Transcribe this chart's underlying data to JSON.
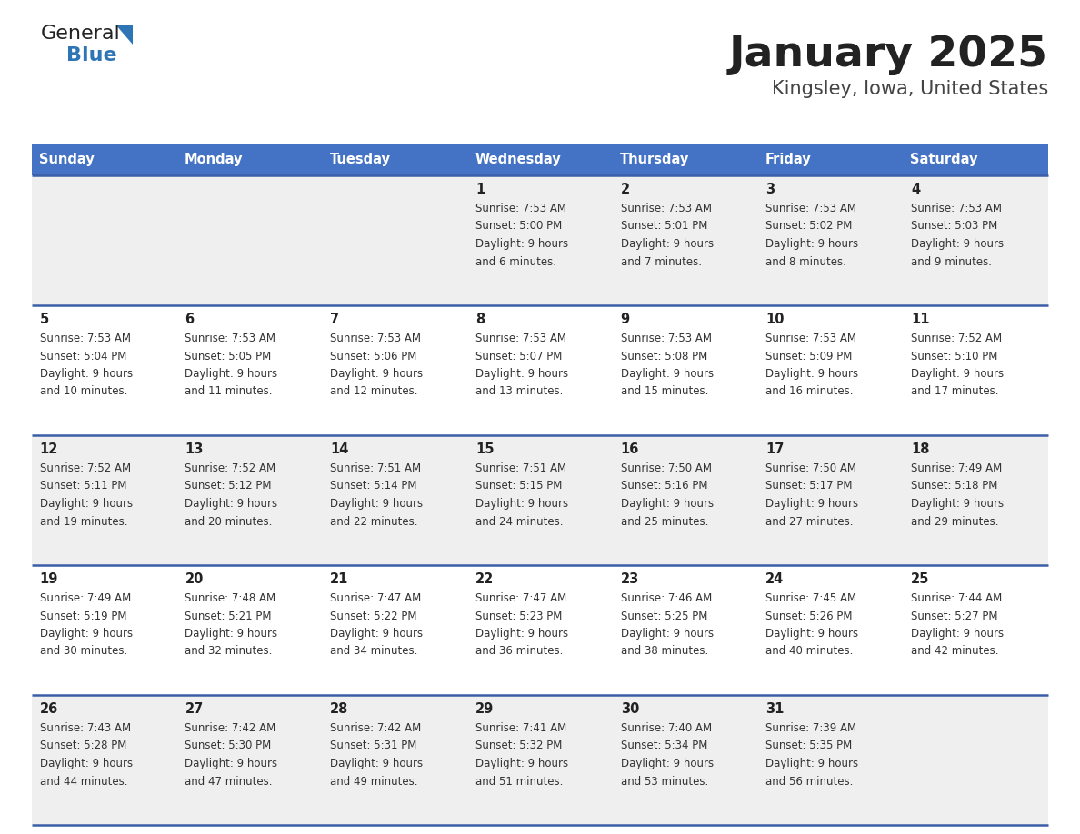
{
  "title": "January 2025",
  "subtitle": "Kingsley, Iowa, United States",
  "days_of_week": [
    "Sunday",
    "Monday",
    "Tuesday",
    "Wednesday",
    "Thursday",
    "Friday",
    "Saturday"
  ],
  "header_bg": "#4472C4",
  "header_text": "#FFFFFF",
  "cell_bg_light": "#EFEFEF",
  "cell_bg_white": "#FFFFFF",
  "cell_text": "#333333",
  "border_color": "#3A5EA8",
  "title_color": "#222222",
  "subtitle_color": "#444444",
  "logo_general_color": "#222222",
  "logo_blue_color": "#2E75B6",
  "logo_triangle_color": "#2E75B6",
  "calendar_data": [
    [
      null,
      null,
      null,
      {
        "day": 1,
        "sunrise": "7:53 AM",
        "sunset": "5:00 PM",
        "daylight": "9 hours and 6 minutes."
      },
      {
        "day": 2,
        "sunrise": "7:53 AM",
        "sunset": "5:01 PM",
        "daylight": "9 hours and 7 minutes."
      },
      {
        "day": 3,
        "sunrise": "7:53 AM",
        "sunset": "5:02 PM",
        "daylight": "9 hours and 8 minutes."
      },
      {
        "day": 4,
        "sunrise": "7:53 AM",
        "sunset": "5:03 PM",
        "daylight": "9 hours and 9 minutes."
      }
    ],
    [
      {
        "day": 5,
        "sunrise": "7:53 AM",
        "sunset": "5:04 PM",
        "daylight": "9 hours and 10 minutes."
      },
      {
        "day": 6,
        "sunrise": "7:53 AM",
        "sunset": "5:05 PM",
        "daylight": "9 hours and 11 minutes."
      },
      {
        "day": 7,
        "sunrise": "7:53 AM",
        "sunset": "5:06 PM",
        "daylight": "9 hours and 12 minutes."
      },
      {
        "day": 8,
        "sunrise": "7:53 AM",
        "sunset": "5:07 PM",
        "daylight": "9 hours and 13 minutes."
      },
      {
        "day": 9,
        "sunrise": "7:53 AM",
        "sunset": "5:08 PM",
        "daylight": "9 hours and 15 minutes."
      },
      {
        "day": 10,
        "sunrise": "7:53 AM",
        "sunset": "5:09 PM",
        "daylight": "9 hours and 16 minutes."
      },
      {
        "day": 11,
        "sunrise": "7:52 AM",
        "sunset": "5:10 PM",
        "daylight": "9 hours and 17 minutes."
      }
    ],
    [
      {
        "day": 12,
        "sunrise": "7:52 AM",
        "sunset": "5:11 PM",
        "daylight": "9 hours and 19 minutes."
      },
      {
        "day": 13,
        "sunrise": "7:52 AM",
        "sunset": "5:12 PM",
        "daylight": "9 hours and 20 minutes."
      },
      {
        "day": 14,
        "sunrise": "7:51 AM",
        "sunset": "5:14 PM",
        "daylight": "9 hours and 22 minutes."
      },
      {
        "day": 15,
        "sunrise": "7:51 AM",
        "sunset": "5:15 PM",
        "daylight": "9 hours and 24 minutes."
      },
      {
        "day": 16,
        "sunrise": "7:50 AM",
        "sunset": "5:16 PM",
        "daylight": "9 hours and 25 minutes."
      },
      {
        "day": 17,
        "sunrise": "7:50 AM",
        "sunset": "5:17 PM",
        "daylight": "9 hours and 27 minutes."
      },
      {
        "day": 18,
        "sunrise": "7:49 AM",
        "sunset": "5:18 PM",
        "daylight": "9 hours and 29 minutes."
      }
    ],
    [
      {
        "day": 19,
        "sunrise": "7:49 AM",
        "sunset": "5:19 PM",
        "daylight": "9 hours and 30 minutes."
      },
      {
        "day": 20,
        "sunrise": "7:48 AM",
        "sunset": "5:21 PM",
        "daylight": "9 hours and 32 minutes."
      },
      {
        "day": 21,
        "sunrise": "7:47 AM",
        "sunset": "5:22 PM",
        "daylight": "9 hours and 34 minutes."
      },
      {
        "day": 22,
        "sunrise": "7:47 AM",
        "sunset": "5:23 PM",
        "daylight": "9 hours and 36 minutes."
      },
      {
        "day": 23,
        "sunrise": "7:46 AM",
        "sunset": "5:25 PM",
        "daylight": "9 hours and 38 minutes."
      },
      {
        "day": 24,
        "sunrise": "7:45 AM",
        "sunset": "5:26 PM",
        "daylight": "9 hours and 40 minutes."
      },
      {
        "day": 25,
        "sunrise": "7:44 AM",
        "sunset": "5:27 PM",
        "daylight": "9 hours and 42 minutes."
      }
    ],
    [
      {
        "day": 26,
        "sunrise": "7:43 AM",
        "sunset": "5:28 PM",
        "daylight": "9 hours and 44 minutes."
      },
      {
        "day": 27,
        "sunrise": "7:42 AM",
        "sunset": "5:30 PM",
        "daylight": "9 hours and 47 minutes."
      },
      {
        "day": 28,
        "sunrise": "7:42 AM",
        "sunset": "5:31 PM",
        "daylight": "9 hours and 49 minutes."
      },
      {
        "day": 29,
        "sunrise": "7:41 AM",
        "sunset": "5:32 PM",
        "daylight": "9 hours and 51 minutes."
      },
      {
        "day": 30,
        "sunrise": "7:40 AM",
        "sunset": "5:34 PM",
        "daylight": "9 hours and 53 minutes."
      },
      {
        "day": 31,
        "sunrise": "7:39 AM",
        "sunset": "5:35 PM",
        "daylight": "9 hours and 56 minutes."
      },
      null
    ]
  ]
}
